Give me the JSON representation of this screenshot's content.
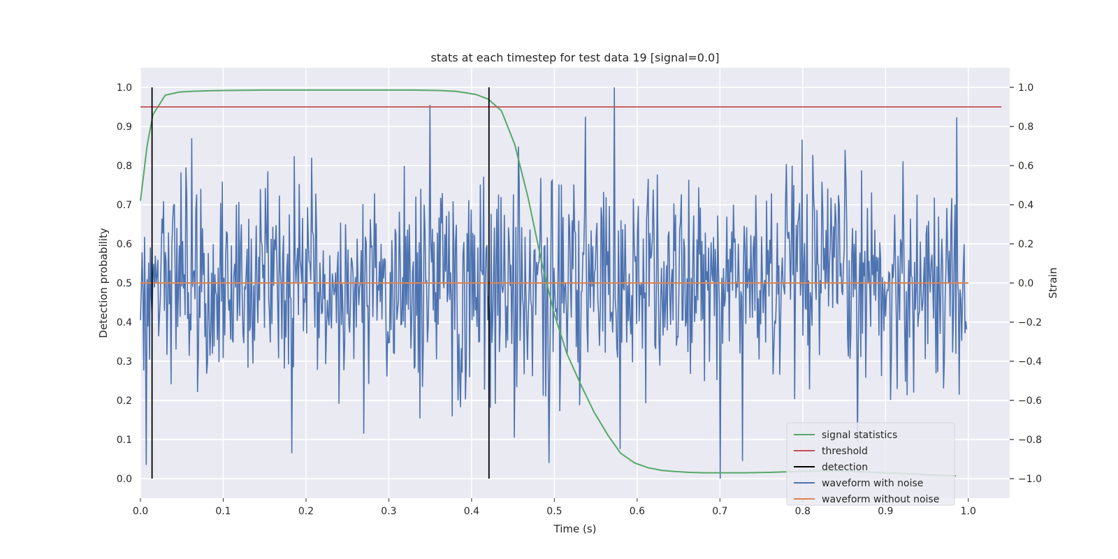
{
  "chart_data": {
    "type": "line",
    "title": "stats at each timestep for test data 19 [signal=0.0]",
    "xlabel": "Time (s)",
    "ylabel_left": "Detection probability",
    "ylabel_right": "Strain",
    "xlim": [
      0.0,
      1.05
    ],
    "ylim_left": [
      -0.05,
      1.05
    ],
    "ylim_right": [
      -1.1,
      1.1
    ],
    "x_ticks": [
      0.0,
      0.1,
      0.2,
      0.3,
      0.4,
      0.5,
      0.6,
      0.7,
      0.8,
      0.9,
      1.0
    ],
    "x_tick_labels": [
      "0.0",
      "0.1",
      "0.2",
      "0.3",
      "0.4",
      "0.5",
      "0.6",
      "0.7",
      "0.8",
      "0.9",
      "1.0"
    ],
    "y_left_ticks": [
      0.0,
      0.1,
      0.2,
      0.3,
      0.4,
      0.5,
      0.6,
      0.7,
      0.8,
      0.9,
      1.0
    ],
    "y_left_tick_labels": [
      "0.0",
      "0.1",
      "0.2",
      "0.3",
      "0.4",
      "0.5",
      "0.6",
      "0.7",
      "0.8",
      "0.9",
      "1.0"
    ],
    "y_right_ticks": [
      -1.0,
      -0.8,
      -0.6,
      -0.4,
      -0.2,
      0.0,
      0.2,
      0.4,
      0.6,
      0.8,
      1.0
    ],
    "y_right_tick_labels": [
      "−1.0",
      "−0.8",
      "−0.6",
      "−0.4",
      "−0.2",
      "0.0",
      "0.2",
      "0.4",
      "0.6",
      "0.8",
      "1.0"
    ],
    "grid": true,
    "legend_position": "lower-right",
    "series": [
      {
        "name": "signal statistics",
        "axis": "left",
        "color": "#55a868",
        "x": [
          0.0,
          0.008,
          0.015,
          0.03,
          0.047,
          0.063,
          0.08,
          0.1,
          0.15,
          0.2,
          0.25,
          0.3,
          0.33,
          0.36,
          0.38,
          0.39,
          0.405,
          0.42,
          0.436,
          0.452,
          0.468,
          0.485,
          0.5,
          0.515,
          0.532,
          0.548,
          0.565,
          0.58,
          0.597,
          0.613,
          0.63,
          0.647,
          0.663,
          0.68,
          0.7,
          0.73,
          0.76,
          0.79,
          0.83,
          0.87,
          0.9,
          0.93,
          0.96,
          0.985
        ],
        "y": [
          0.71,
          0.85,
          0.93,
          0.98,
          0.988,
          0.99,
          0.991,
          0.992,
          0.993,
          0.993,
          0.993,
          0.993,
          0.993,
          0.992,
          0.99,
          0.987,
          0.982,
          0.97,
          0.94,
          0.855,
          0.72,
          0.55,
          0.42,
          0.32,
          0.24,
          0.17,
          0.11,
          0.065,
          0.04,
          0.028,
          0.021,
          0.018,
          0.016,
          0.015,
          0.015,
          0.015,
          0.016,
          0.018,
          0.02,
          0.018,
          0.015,
          0.012,
          0.009,
          0.007
        ]
      },
      {
        "name": "threshold",
        "axis": "left",
        "color": "#c44e52",
        "x": [
          0.0,
          1.04
        ],
        "y": [
          0.95,
          0.95
        ]
      },
      {
        "name": "detection",
        "axis": "left",
        "color": "#000000",
        "vlines": [
          0.014,
          0.421
        ],
        "ymin": 0.0,
        "ymax": 1.0
      },
      {
        "name": "waveform with noise",
        "axis": "right",
        "color": "#4c72b0",
        "noise_like": true,
        "x_range": [
          0.0,
          0.998
        ],
        "num_points": 1000,
        "amplitude_std": 0.27,
        "notable_peaks": [
          {
            "x": 0.572,
            "y": 1.0
          },
          {
            "x": 0.35,
            "y": 0.91
          },
          {
            "x": 0.062,
            "y": 0.74
          },
          {
            "x": 0.7,
            "y": -1.0
          },
          {
            "x": 0.007,
            "y": -0.93
          },
          {
            "x": 0.494,
            "y": -0.92
          },
          {
            "x": 0.727,
            "y": -0.91
          },
          {
            "x": 0.183,
            "y": -0.87
          },
          {
            "x": 0.27,
            "y": -0.77
          }
        ]
      },
      {
        "name": "waveform without noise",
        "axis": "right",
        "color": "#dd8452",
        "x": [
          0.0,
          1.0
        ],
        "y": [
          0.0,
          0.0
        ]
      }
    ]
  }
}
